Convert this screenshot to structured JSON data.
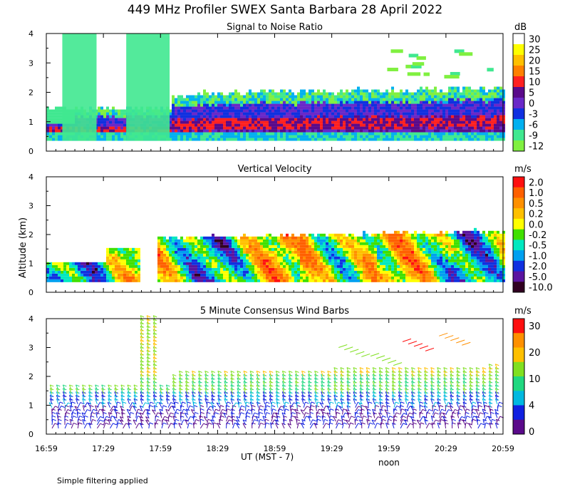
{
  "title": "449 MHz Profiler SWEX Santa Barbara 28 April 2022",
  "note": "Simple filtering applied",
  "xlabel": "UT  (MST - 7)",
  "noon_label": "noon",
  "ylabel": "Altitude (km)",
  "chart_data": [
    {
      "type": "heatmap",
      "title": "Signal to Noise Ratio",
      "unit": "dB",
      "ylim": [
        0,
        4
      ],
      "yticks": [
        "0",
        "1",
        "2",
        "3",
        "4"
      ],
      "xticks": [
        "16:59",
        "17:29",
        "17:59",
        "18:29",
        "18:59",
        "19:29",
        "19:59",
        "20:29",
        "20:59"
      ],
      "colorbar": {
        "labels": [
          "30",
          "25",
          "20",
          "15",
          "10",
          "5",
          "0",
          "-3",
          "-6",
          "-9",
          "-12"
        ],
        "colors": [
          "#ffffff",
          "#ffff00",
          "#ffc000",
          "#ff8000",
          "#ff2020",
          "#5a0a8a",
          "#6a28c8",
          "#1030e0",
          "#00b0f0",
          "#40e890",
          "#80f040"
        ]
      }
    },
    {
      "type": "heatmap",
      "title": "Vertical Velocity",
      "unit": "m/s",
      "ylim": [
        0,
        4
      ],
      "yticks": [
        "0",
        "1",
        "2",
        "3",
        "4"
      ],
      "xticks": [
        "16:59",
        "17:29",
        "17:59",
        "18:29",
        "18:59",
        "19:29",
        "19:59",
        "20:29",
        "20:59"
      ],
      "colorbar": {
        "labels": [
          "2.0",
          "1.0",
          "0.5",
          "0.2",
          "0.0",
          "-0.2",
          "-0.5",
          "-1.0",
          "-2.0",
          "-5.0",
          "-10.0"
        ],
        "colors": [
          "#ff1010",
          "#ff6000",
          "#ff9000",
          "#ffc000",
          "#ffff00",
          "#40e000",
          "#00e8c0",
          "#00a0f0",
          "#1030e0",
          "#5a14a0",
          "#300020"
        ]
      }
    },
    {
      "type": "wind_barbs",
      "title": "5 Minute Consensus Wind Barbs",
      "unit": "m/s",
      "ylim": [
        0,
        4
      ],
      "yticks": [
        "0",
        "1",
        "2",
        "3",
        "4"
      ],
      "xticks": [
        "16:59",
        "17:29",
        "17:59",
        "18:29",
        "18:59",
        "19:29",
        "19:59",
        "20:29",
        "20:59"
      ],
      "colorbar": {
        "labels": [
          "30",
          "20",
          "10",
          "4",
          "0"
        ],
        "colors": [
          "#ff1010",
          "#ff9000",
          "#ffc000",
          "#80e020",
          "#20d880",
          "#00b8e0",
          "#1020e0",
          "#5a0a8a"
        ]
      }
    }
  ]
}
